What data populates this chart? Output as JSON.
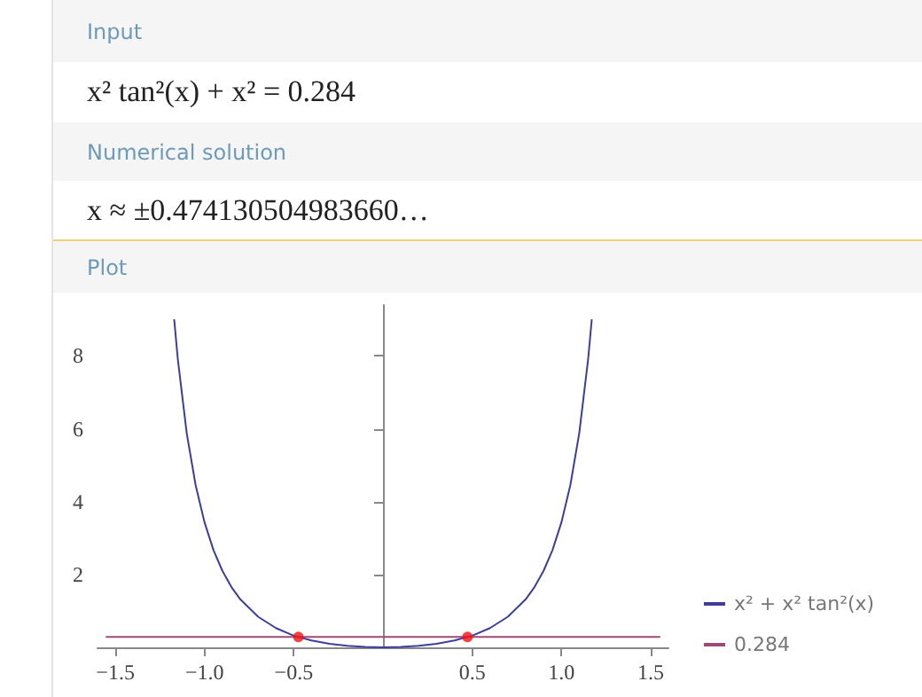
{
  "chart_data": {
    "type": "line",
    "annotations": [
      "Input",
      "x² tan²(x) + x² = 0.284",
      "Numerical solution",
      "x ≈ ±0.474130504983660…",
      "Plot"
    ],
    "xlim": [
      -1.6,
      1.6
    ],
    "ylim": [
      0,
      9.4
    ],
    "xticks": [
      {
        "value": -1.5,
        "label": "−1.5"
      },
      {
        "value": -1,
        "label": "−1.0"
      },
      {
        "value": -0.5,
        "label": "−0.5"
      },
      {
        "value": 0.5,
        "label": "0.5"
      },
      {
        "value": 1,
        "label": "1.0"
      },
      {
        "value": 1.5,
        "label": "1.5"
      }
    ],
    "yticks": [
      2,
      4,
      6,
      8
    ],
    "grid": false,
    "legend": "right",
    "marker": "none",
    "line_style": "solid",
    "series": [
      {
        "name": "x² + x² tan²(x)",
        "color": "#3d3d9e",
        "x": [
          -1.17,
          -1.15,
          -1.1,
          -1.05,
          -1,
          -0.95,
          -0.9,
          -0.85,
          -0.8,
          -0.7,
          -0.6,
          -0.5,
          -0.4,
          -0.3,
          -0.2,
          -0.1,
          0,
          0.1,
          0.2,
          0.3,
          0.4,
          0.5,
          0.6,
          0.7,
          0.8,
          0.85,
          0.9,
          0.95,
          1,
          1.05,
          1.1,
          1.15,
          1.17
        ],
        "values": [
          8.99,
          7.92,
          5.88,
          4.45,
          3.43,
          2.67,
          2.1,
          1.66,
          1.32,
          0.84,
          0.53,
          0.32,
          0.19,
          0.1,
          0.04,
          0.01,
          0,
          0.01,
          0.04,
          0.1,
          0.19,
          0.32,
          0.53,
          0.84,
          1.32,
          1.66,
          2.1,
          2.67,
          3.43,
          4.45,
          5.88,
          7.92,
          8.99
        ]
      },
      {
        "name": "0.284",
        "color": "#9e4a78",
        "x": [
          -1.55,
          1.55
        ],
        "values": [
          0.284,
          0.284
        ]
      },
      {
        "type": "scatter",
        "color": "#ee1111",
        "marker": "circle",
        "x": [
          -0.474,
          0.474
        ],
        "values": [
          0.284,
          0.284
        ]
      }
    ]
  }
}
